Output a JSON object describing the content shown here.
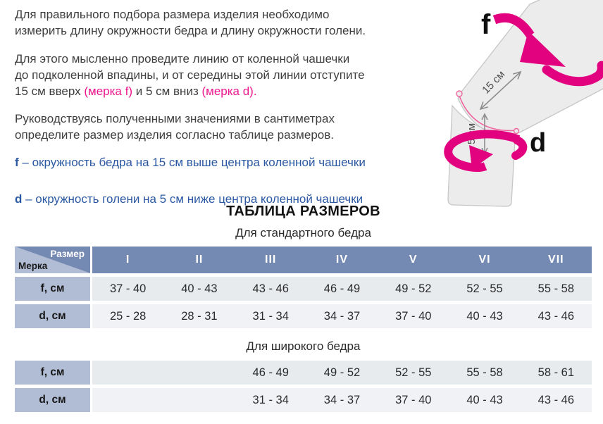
{
  "colors": {
    "accent_pink": "#ee168c",
    "text_blue": "#2b58a3",
    "header_blue": "#758ab3",
    "label_blue": "#b1bdd4"
  },
  "intro": {
    "p1_lines": [
      "Для правильного подбора размера изделия необходимо",
      "измерить длину окружности бедра и длину окружности голени."
    ],
    "p2_lines": [
      "Для этого мысленно проведите линию от коленной чашечки",
      "до подколенной впадины, и от середины этой линии отступите"
    ],
    "p2_line3": {
      "before": "15 см вверх ",
      "mark_f": "(мерка f)",
      "middle": " и 5 см вниз ",
      "mark_d": "(мерка d)."
    },
    "p3_lines": [
      "Руководствуясь полученными значениями в сантиметрах",
      "определите размер изделия согласно таблице размеров."
    ],
    "def_f": {
      "letter": "f",
      "text": "– окружность бедра на 15 см выше центра коленной чашечки"
    },
    "def_d": {
      "letter": "d",
      "text": "– окружность голени на 5 см ниже центра коленной чашечки"
    }
  },
  "figure": {
    "label_f": "f",
    "label_d": "d",
    "dim_thigh": "15 см",
    "dim_calf": "5 см"
  },
  "size_table": {
    "title": "ТАБЛИЦА РАЗМЕРОВ",
    "corner": {
      "top": "Размер",
      "bottom": "Мерка"
    },
    "columns": [
      "I",
      "II",
      "III",
      "IV",
      "V",
      "VI",
      "VII"
    ],
    "sections": [
      {
        "subtitle": "Для стандартного бедра",
        "show_header": true,
        "rows": [
          {
            "label": "f, см",
            "values": [
              "37 - 40",
              "40 - 43",
              "43 - 46",
              "46 - 49",
              "49 - 52",
              "52 - 55",
              "55 - 58"
            ]
          },
          {
            "label": "d, см",
            "values": [
              "25 - 28",
              "28 - 31",
              "31 - 34",
              "34 - 37",
              "37 - 40",
              "40 - 43",
              "43 - 46"
            ]
          }
        ]
      },
      {
        "subtitle": "Для широкого бедра",
        "show_header": false,
        "rows": [
          {
            "label": "f, см",
            "values": [
              "",
              "",
              "46 - 49",
              "49 - 52",
              "52 - 55",
              "55 - 58",
              "58 - 61"
            ]
          },
          {
            "label": "d, см",
            "values": [
              "",
              "",
              "31 - 34",
              "34 - 37",
              "37 - 40",
              "40 - 43",
              "43 - 46"
            ]
          }
        ]
      }
    ]
  }
}
